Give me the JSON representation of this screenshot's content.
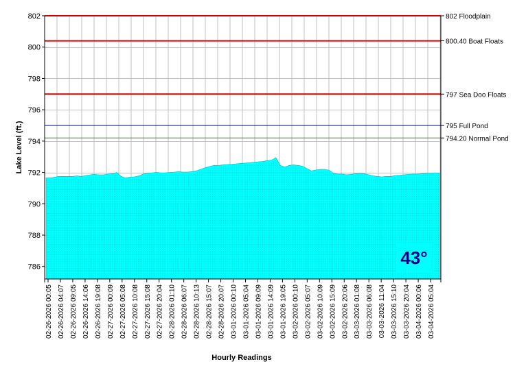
{
  "chart_data": {
    "type": "area",
    "title": "",
    "xlabel": "Hourly Readings",
    "ylabel": "Lake Level (ft.)",
    "ylim": [
      785.2,
      802
    ],
    "y_ticks": [
      786,
      788,
      790,
      792,
      794,
      796,
      798,
      800,
      802
    ],
    "grid": true,
    "fill_color": "#00ffff",
    "x_tick_labels": [
      "02-26-2026 00:05",
      "02-26-2026 04:07",
      "02-26-2026 09:05",
      "02-26-2026 14:06",
      "02-26-2026 19:08",
      "02-27-2026 00:09",
      "02-27-2026 05:08",
      "02-27-2026 10:08",
      "02-27-2026 15:08",
      "02-27-2026 20:04",
      "02-28-2026 01:10",
      "02-28-2026 06:07",
      "02-28-2026 10:13",
      "02-28-2026 15:07",
      "02-28-2026 20:07",
      "03-01-2026 00:10",
      "03-01-2026 05:04",
      "03-01-2026 09:09",
      "03-01-2026 14:09",
      "03-01-2026 19:05",
      "03-02-2026 00:10",
      "03-02-2026 05:07",
      "03-02-2026 10:09",
      "03-02-2026 15:09",
      "03-02-2026 20:06",
      "03-03-2026 01:08",
      "03-03-2026 06:08",
      "03-03-2026 11:04",
      "03-03-2026 15:10",
      "03-03-2026 20:04",
      "03-04-2026 00:06",
      "03-04-2026 05:04"
    ],
    "series": [
      {
        "values": [
          791.65,
          791.65,
          791.7,
          791.75,
          791.75,
          791.75,
          791.75,
          791.78,
          791.75,
          791.8,
          791.85,
          791.88,
          791.85,
          791.85,
          791.9,
          791.92,
          792.0,
          791.75,
          791.65,
          791.7,
          791.72,
          791.78,
          791.9,
          791.95,
          791.98,
          792.0,
          791.98,
          791.98,
          792.0,
          792.02,
          792.05,
          792.02,
          792.02,
          792.05,
          792.1,
          792.2,
          792.3,
          792.38,
          792.45,
          792.45,
          792.48,
          792.5,
          792.52,
          792.55,
          792.58,
          792.6,
          792.62,
          792.65,
          792.68,
          792.7,
          792.75,
          792.78,
          792.95,
          792.45,
          792.35,
          792.45,
          792.48,
          792.45,
          792.4,
          792.25,
          792.1,
          792.15,
          792.2,
          792.2,
          792.15,
          791.95,
          791.9,
          791.9,
          791.85,
          791.88,
          791.92,
          791.95,
          791.92,
          791.85,
          791.78,
          791.75,
          791.72,
          791.75,
          791.75,
          791.8,
          791.82,
          791.85,
          791.88,
          791.9,
          791.9,
          791.92,
          791.95,
          791.95,
          791.98,
          791.95
        ]
      }
    ],
    "reference_lines": [
      {
        "value": 802,
        "label": "802 Floodplain",
        "color": "#d40000"
      },
      {
        "value": 800.4,
        "label": "800.40 Boat Floats",
        "color": "#d40000"
      },
      {
        "value": 797,
        "label": "797 Sea Doo Floats",
        "color": "#d40000"
      },
      {
        "value": 795,
        "label": "795 Full Pond",
        "color": "#000080"
      },
      {
        "value": 794.2,
        "label": "794.20 Normal Pond",
        "color": "#2e8b2e"
      }
    ],
    "annotations": [
      {
        "text": "43°",
        "position": "bottom-right",
        "color": "#00008b",
        "background": "#00ffff"
      }
    ]
  }
}
